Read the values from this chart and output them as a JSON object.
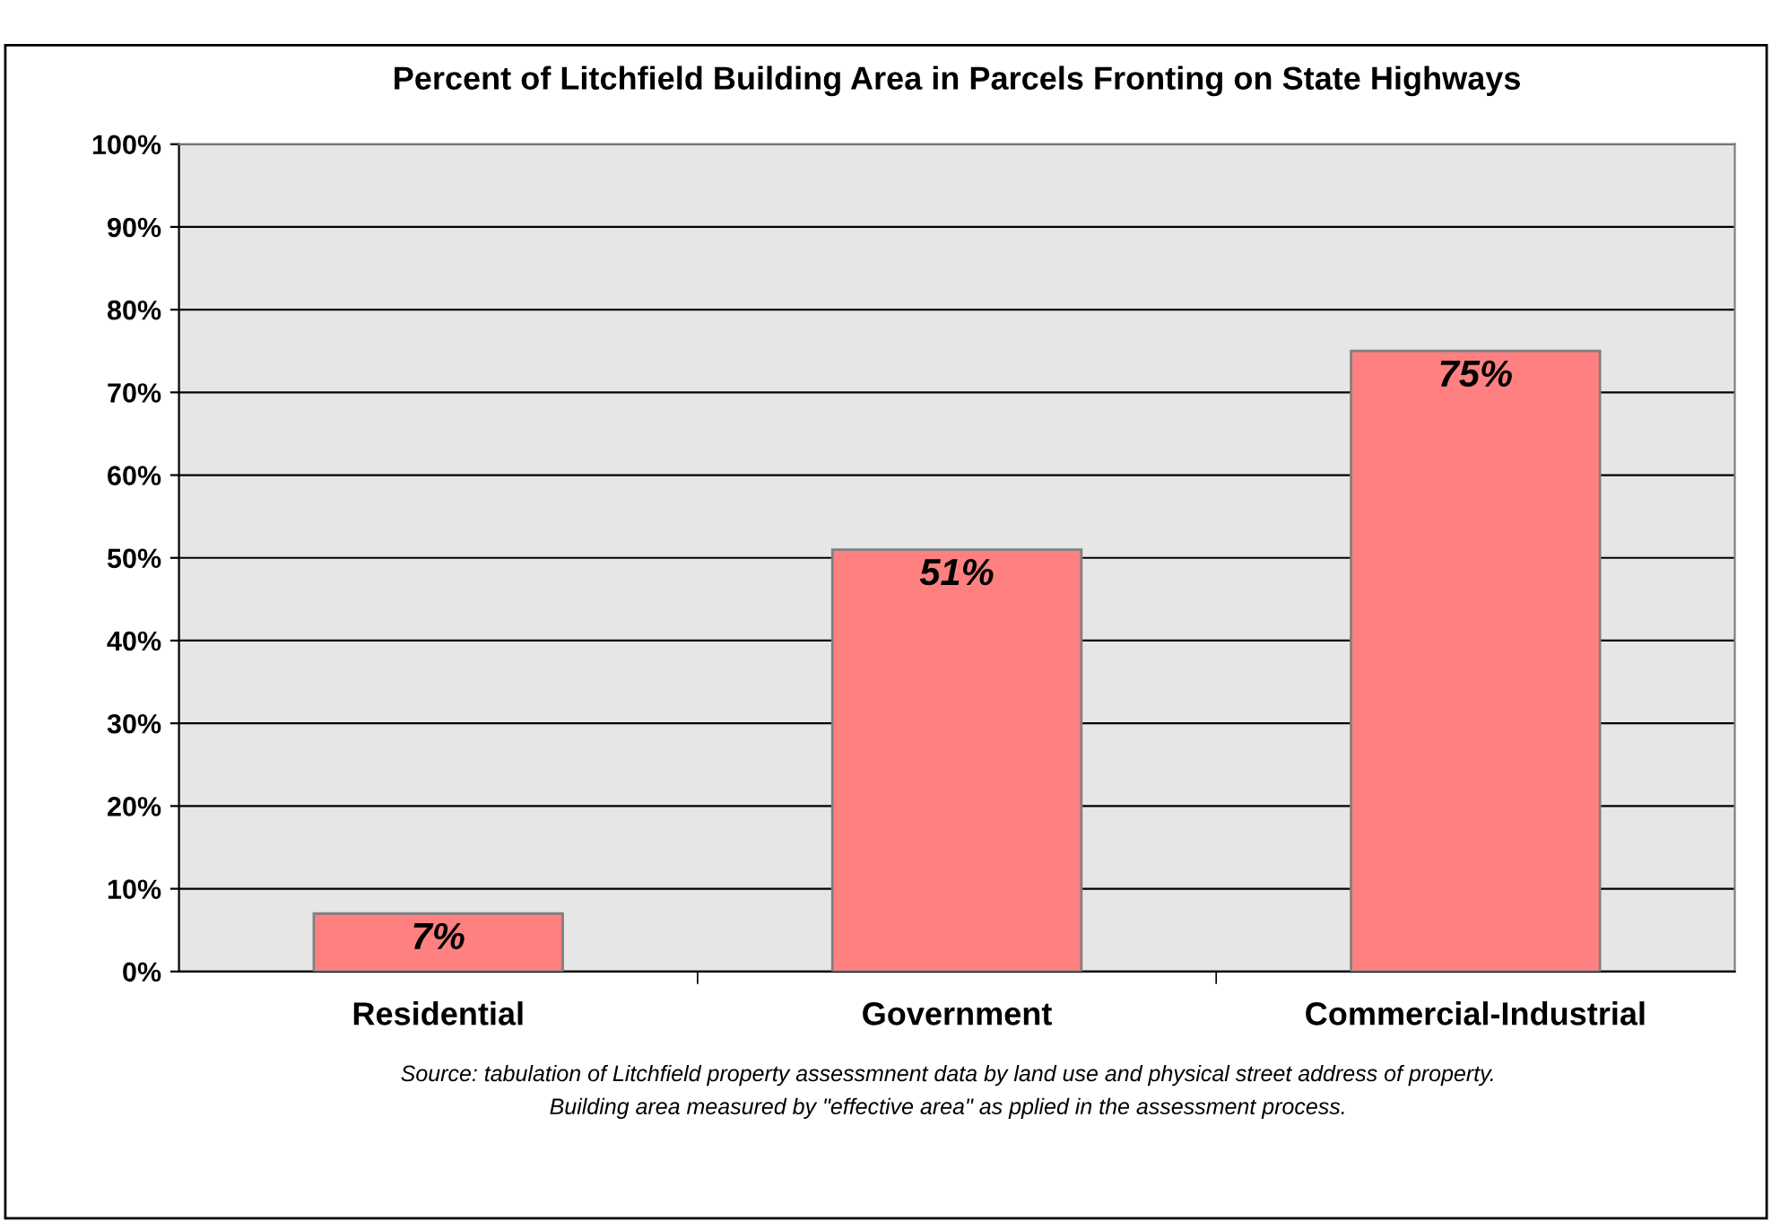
{
  "chart_data": {
    "type": "bar",
    "title": "Percent of Litchfield Building Area in Parcels Fronting on State Highways",
    "categories": [
      "Residential",
      "Government",
      "Commercial-Industrial"
    ],
    "values": [
      7,
      51,
      75
    ],
    "value_labels": [
      "7%",
      "51%",
      "75%"
    ],
    "color": "#ff8080",
    "ylim": [
      0,
      100
    ],
    "yticks": [
      {
        "value": 0,
        "label": "0%"
      },
      {
        "value": 10,
        "label": "10%"
      },
      {
        "value": 20,
        "label": "20%"
      },
      {
        "value": 30,
        "label": "30%"
      },
      {
        "value": 40,
        "label": "40%"
      },
      {
        "value": 50,
        "label": "50%"
      },
      {
        "value": 60,
        "label": "60%"
      },
      {
        "value": 70,
        "label": "70%"
      },
      {
        "value": 80,
        "label": "80%"
      },
      {
        "value": 90,
        "label": "90%"
      },
      {
        "value": 100,
        "label": "100%"
      }
    ],
    "grid": "y",
    "legend": false,
    "annotations": [
      "Source: tabulation of Litchfield property assessmnent data by land use and physical street address of property.",
      "Building area measured by \"effective area\" as pplied in the assessment process."
    ]
  }
}
